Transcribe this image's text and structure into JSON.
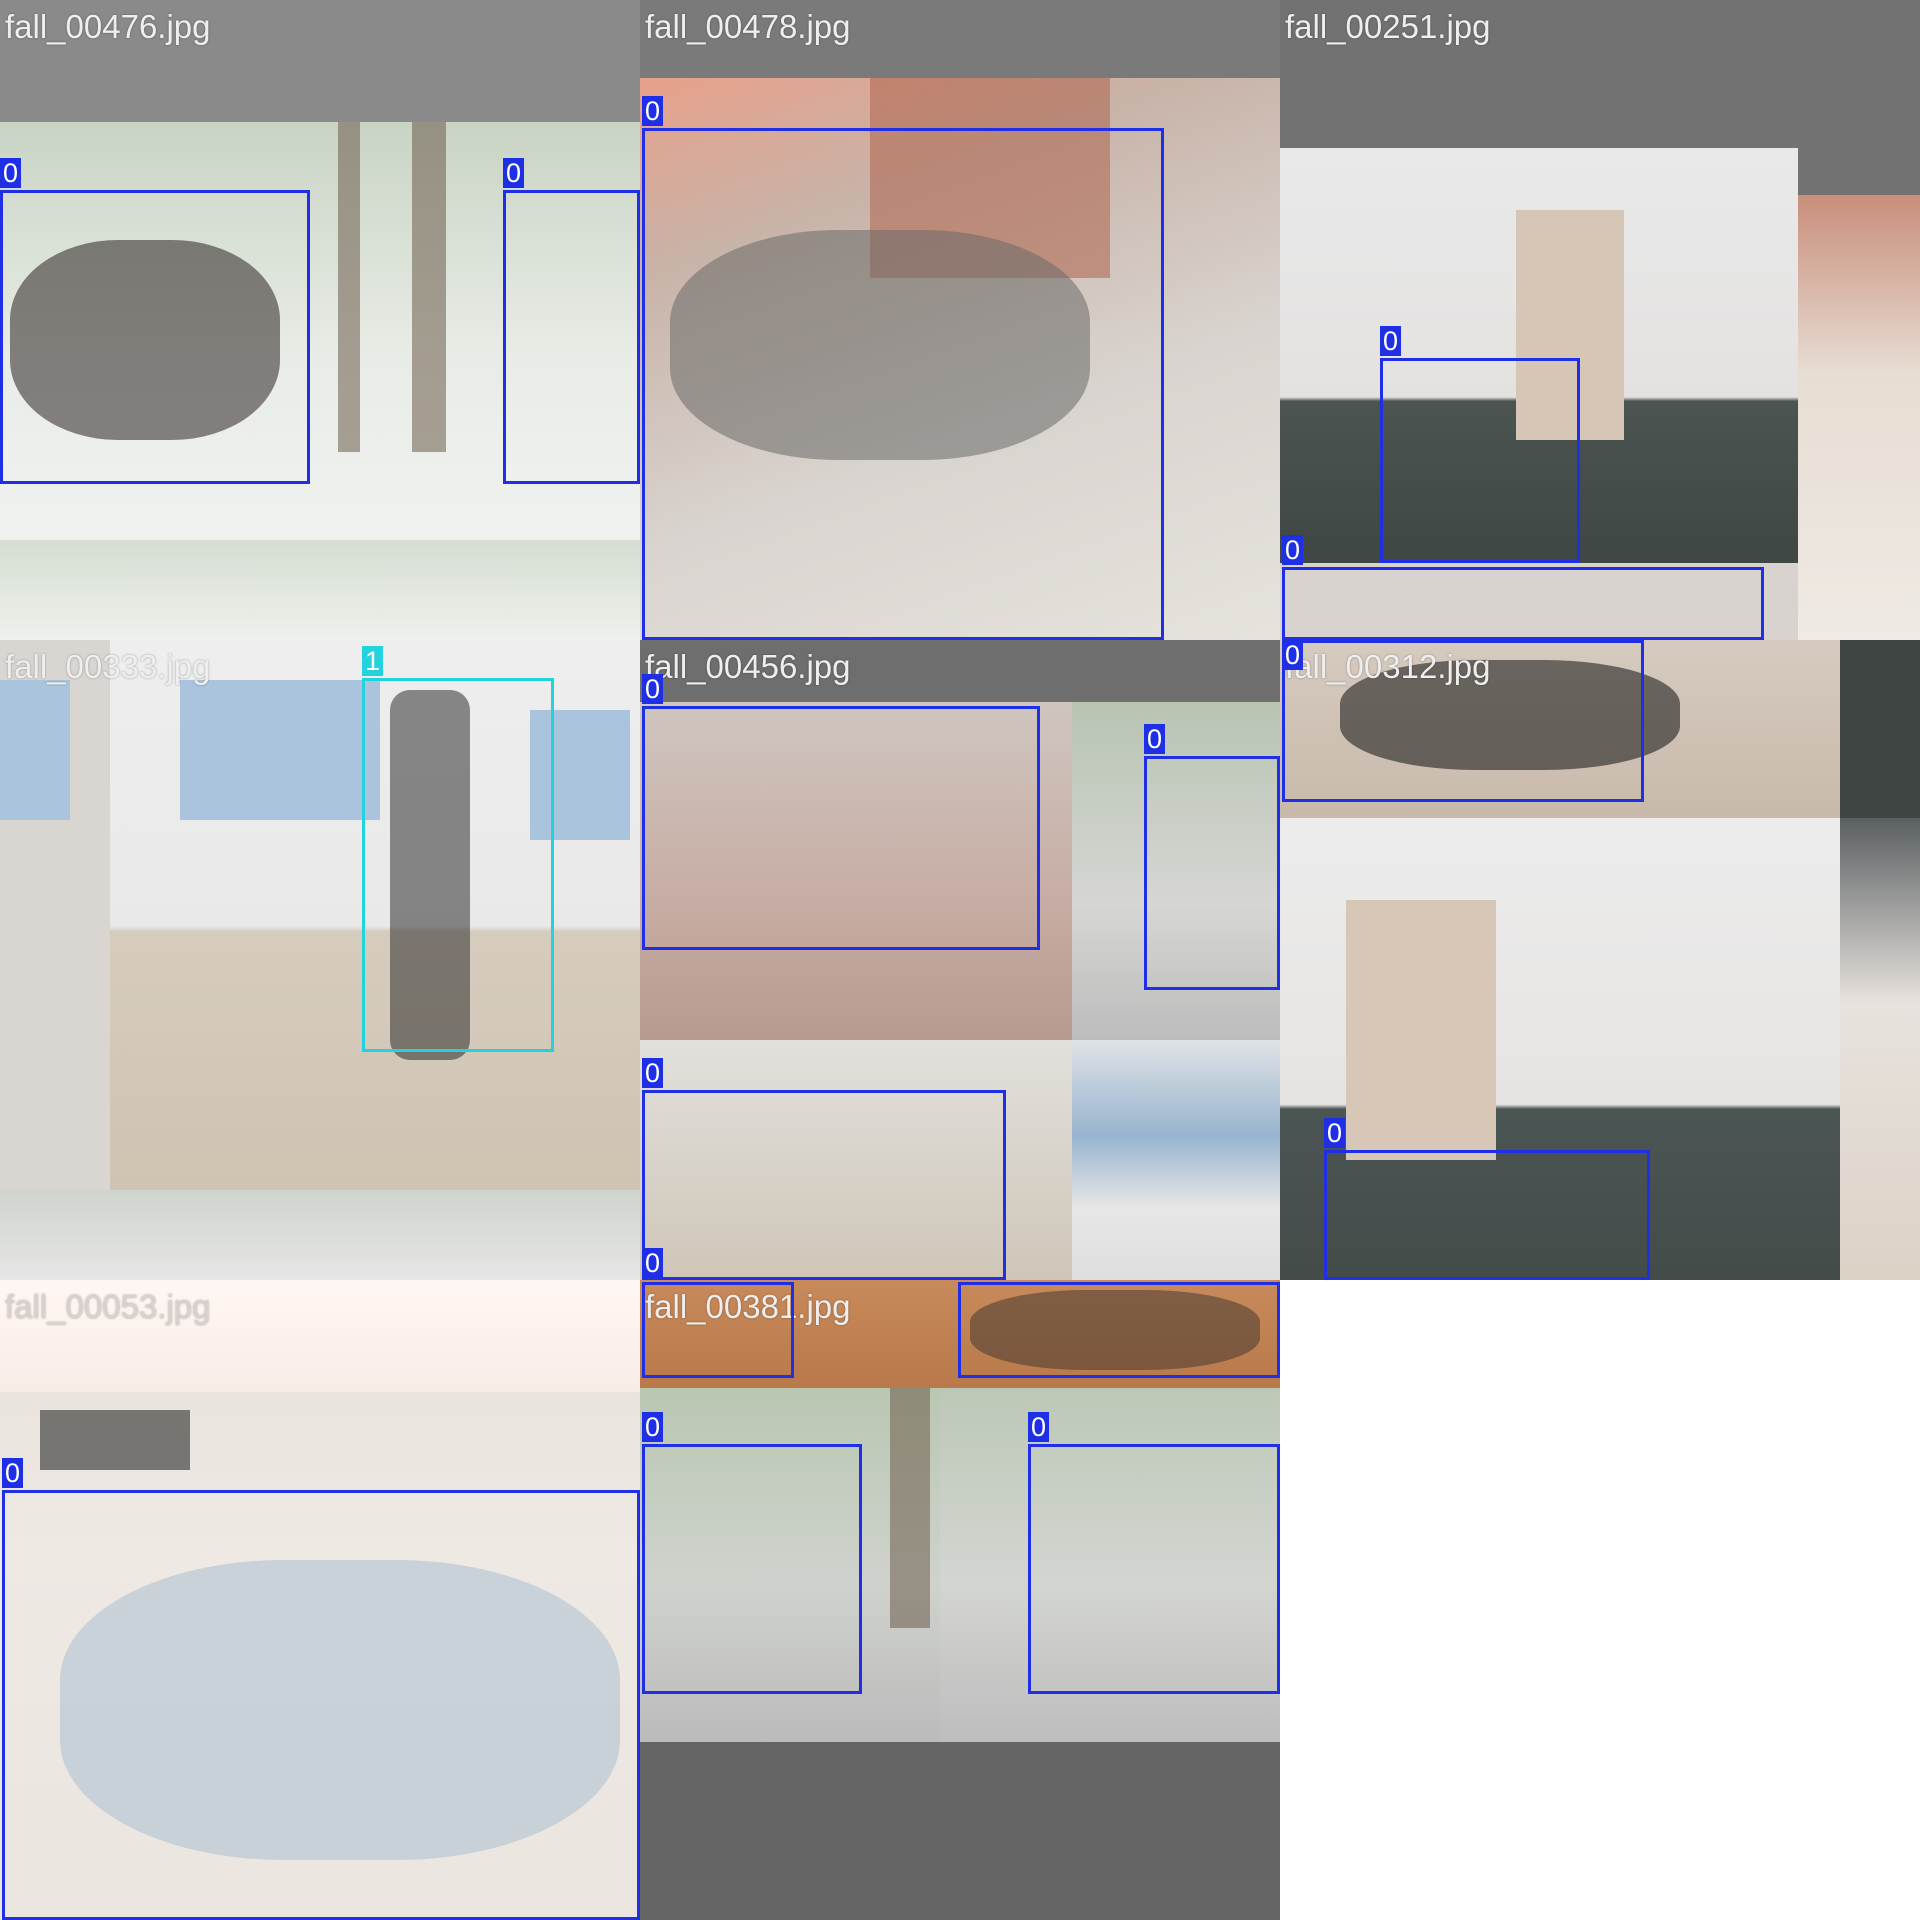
{
  "grid": {
    "tiles": [
      {
        "filename": "fall_00476.jpg"
      },
      {
        "filename": "fall_00478.jpg"
      },
      {
        "filename": "fall_00251.jpg"
      },
      {
        "filename": "fall_00333.jpg"
      },
      {
        "filename": "fall_00456.jpg"
      },
      {
        "filename": "fall_00312.jpg"
      },
      {
        "filename": "fall_00053.jpg"
      },
      {
        "filename": "fall_00381.jpg"
      }
    ]
  },
  "labels": {
    "fall_class": "0",
    "standing_class": "1"
  },
  "colors": {
    "class_0_box": "#1f2fe6",
    "class_1_box": "#22d3dd",
    "letterbox_gray": "#727272",
    "background": "#ffffff"
  }
}
